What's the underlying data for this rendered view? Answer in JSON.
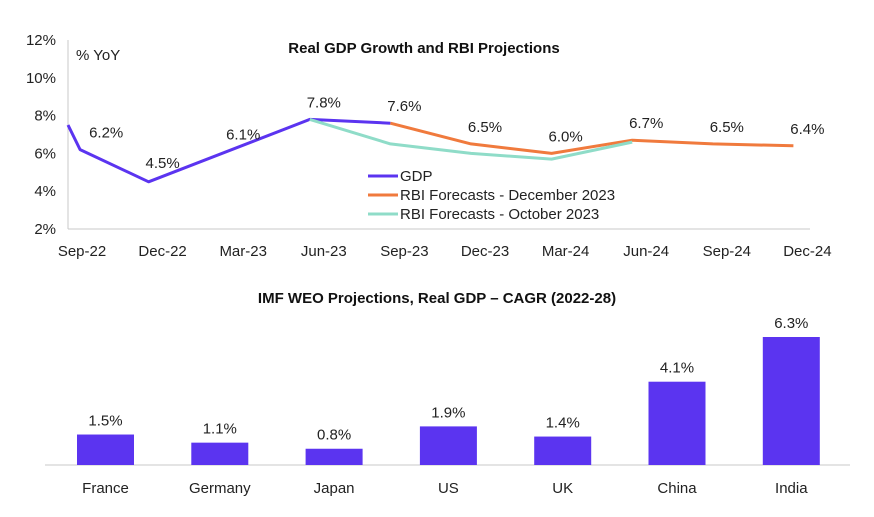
{
  "chart_data": [
    {
      "type": "line",
      "title": "Real GDP Growth and RBI Projections",
      "ylabel": "% YoY",
      "xlabel": "",
      "x_ticks": [
        "Sep-22",
        "Dec-22",
        "Mar-23",
        "Jun-23",
        "Sep-23",
        "Dec-23",
        "Mar-24",
        "Jun-24",
        "Sep-24",
        "Dec-24"
      ],
      "y_ticks": [
        "2%",
        "4%",
        "6%",
        "8%",
        "10%",
        "12%"
      ],
      "ylim": [
        2,
        12
      ],
      "series": [
        {
          "name": "GDP",
          "color": "#5b34f0",
          "points": [
            [
              0,
              7.5
            ],
            [
              0.15,
              6.2
            ],
            [
              1,
              4.5
            ],
            [
              3,
              7.8
            ],
            [
              4,
              7.6
            ]
          ]
        },
        {
          "name": "RBI Forecasts - December 2023",
          "color": "#f07a3d",
          "points": [
            [
              4,
              7.6
            ],
            [
              5,
              6.5
            ],
            [
              6,
              6.0
            ],
            [
              7,
              6.7
            ],
            [
              8,
              6.5
            ],
            [
              9,
              6.4
            ]
          ]
        },
        {
          "name": "RBI Forecasts - October 2023",
          "color": "#8fdcc8",
          "points": [
            [
              3,
              7.8
            ],
            [
              4,
              6.5
            ],
            [
              5,
              6.0
            ],
            [
              6,
              5.7
            ],
            [
              7,
              6.6
            ]
          ]
        }
      ],
      "data_labels": [
        {
          "x": 0.3,
          "y": 6.2,
          "text": "6.2%"
        },
        {
          "x": 1,
          "y": 4.5,
          "text": "4.5%"
        },
        {
          "x": 2,
          "y": 6.1,
          "text": "6.1%"
        },
        {
          "x": 3,
          "y": 7.8,
          "text": "7.8%"
        },
        {
          "x": 4,
          "y": 7.6,
          "text": "7.6%"
        },
        {
          "x": 5,
          "y": 6.5,
          "text": "6.5%"
        },
        {
          "x": 6,
          "y": 6.0,
          "text": "6.0%"
        },
        {
          "x": 7,
          "y": 6.7,
          "text": "6.7%"
        },
        {
          "x": 8,
          "y": 6.5,
          "text": "6.5%"
        },
        {
          "x": 9,
          "y": 6.4,
          "text": "6.4%"
        }
      ],
      "legend_position": "center-right"
    },
    {
      "type": "bar",
      "title": "IMF WEO Projections, Real GDP – CAGR (2022-28)",
      "categories": [
        "France",
        "Germany",
        "Japan",
        "US",
        "UK",
        "China",
        "India"
      ],
      "values": [
        1.5,
        1.1,
        0.8,
        1.9,
        1.4,
        4.1,
        6.3
      ],
      "value_labels": [
        "1.5%",
        "1.1%",
        "0.8%",
        "1.9%",
        "1.4%",
        "4.1%",
        "6.3%"
      ],
      "color": "#5b34f0",
      "ylim": [
        0,
        6.3
      ]
    }
  ]
}
